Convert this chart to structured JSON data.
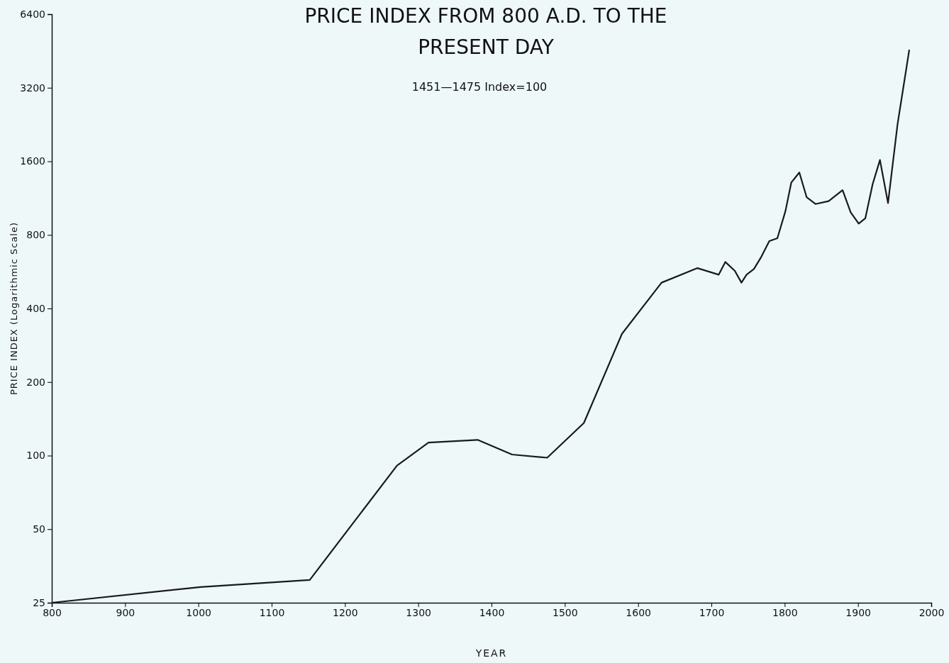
{
  "chart_data": {
    "type": "line",
    "title": "PRICE INDEX FROM 800 A.D. TO THE PRESENT DAY",
    "subtitle": "1451—1475 Index=100",
    "xlabel": "YEAR",
    "ylabel": "PRICE INDEX (Logarithmic Scale)",
    "log": "y",
    "grid": false,
    "marker": "none",
    "line_style": "solid",
    "xlim": [
      800,
      2000
    ],
    "xticks": [
      800,
      900,
      1000,
      1100,
      1200,
      1300,
      1400,
      1500,
      1600,
      1700,
      1800,
      1900,
      2000
    ],
    "ylim": [
      25,
      6400
    ],
    "yticks": [
      25,
      50,
      100,
      200,
      400,
      800,
      1600,
      3200,
      6400
    ],
    "series": [
      {
        "color": "#1a1a1a",
        "x": [
          800,
          1003,
          1152,
          1271,
          1314,
          1381,
          1428,
          1476,
          1526,
          1578,
          1632,
          1681,
          1710,
          1719,
          1732,
          1741,
          1748,
          1758,
          1768,
          1779,
          1790,
          1801,
          1809,
          1820,
          1830,
          1842,
          1860,
          1879,
          1890,
          1901,
          1910,
          1920,
          1930,
          1941,
          1954,
          1970
        ],
        "values": [
          25,
          29,
          31,
          91,
          113,
          116,
          101,
          98,
          136,
          315,
          510,
          585,
          550,
          620,
          570,
          510,
          550,
          580,
          650,
          755,
          775,
          1000,
          1310,
          1440,
          1140,
          1070,
          1100,
          1220,
          990,
          890,
          935,
          1290,
          1620,
          1080,
          2270,
          4580
        ]
      }
    ]
  }
}
